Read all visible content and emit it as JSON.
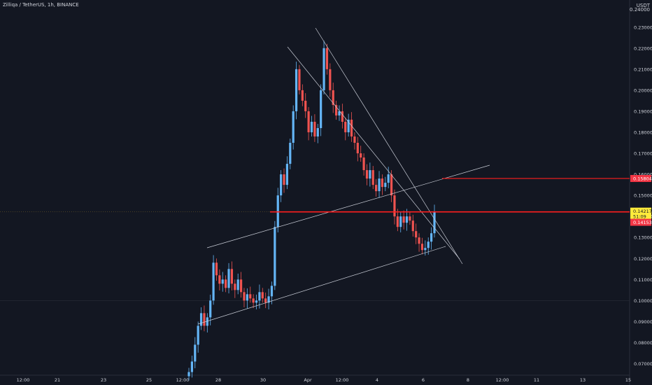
{
  "title": "Zilliqa / TetherUS, 1h, BINANCE",
  "currency": "USDT",
  "top_tick": "0.24000",
  "colors": {
    "background": "#131722",
    "up": "#64b5f6",
    "down": "#ef5350",
    "trendline": "#c8ccd6",
    "level": "#ff1e1e",
    "text": "#d1d4dc",
    "price_label_yellow": "#ffeb3b",
    "price_label_red": "#f23645"
  },
  "chart_data": {
    "type": "candlestick",
    "symbol": "ZILUSDT",
    "exchange": "BINANCE",
    "timeframe": "1h",
    "y_ticks": [
      "0.07000",
      "0.08000",
      "0.09000",
      "0.10000",
      "0.11000",
      "0.12000",
      "0.13000",
      "0.14000",
      "0.15000",
      "0.16000",
      "0.17000",
      "0.18000",
      "0.19000",
      "0.20000",
      "0.21000",
      "0.22000",
      "0.23000"
    ],
    "x_ticks": [
      "12:00",
      "21",
      "23",
      "25",
      "12:00",
      "28",
      "30",
      "Apr",
      "12:00",
      "4",
      "6",
      "8",
      "12:00",
      "11",
      "13",
      "15"
    ],
    "price_labels": [
      {
        "value": "0.15804",
        "style": "red"
      },
      {
        "value": "0.14217",
        "style": "yellow"
      },
      {
        "value": "51:09",
        "style": "yellow"
      },
      {
        "value": "0.14153",
        "style": "red"
      }
    ],
    "ohlc_path_close": [
      0.066,
      0.071,
      0.079,
      0.088,
      0.094,
      0.088,
      0.092,
      0.1,
      0.118,
      0.112,
      0.108,
      0.11,
      0.106,
      0.115,
      0.108,
      0.105,
      0.11,
      0.104,
      0.1,
      0.103,
      0.101,
      0.099,
      0.1,
      0.104,
      0.101,
      0.099,
      0.102,
      0.107,
      0.135,
      0.15,
      0.16,
      0.155,
      0.165,
      0.175,
      0.19,
      0.21,
      0.2,
      0.195,
      0.19,
      0.18,
      0.185,
      0.178,
      0.182,
      0.2,
      0.22,
      0.21,
      0.2,
      0.193,
      0.188,
      0.19,
      0.185,
      0.18,
      0.186,
      0.178,
      0.175,
      0.17,
      0.168,
      0.162,
      0.158,
      0.162,
      0.155,
      0.152,
      0.158,
      0.154,
      0.156,
      0.16,
      0.15,
      0.14,
      0.135,
      0.14,
      0.137,
      0.14,
      0.138,
      0.133,
      0.13,
      0.127,
      0.124,
      0.125,
      0.128,
      0.132,
      0.142
    ]
  }
}
